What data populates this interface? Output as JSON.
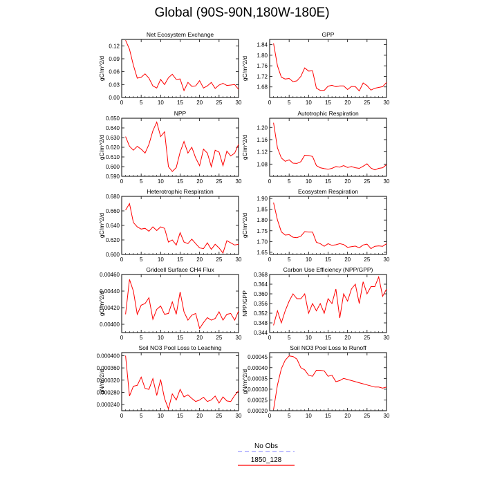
{
  "title": "Global (90S-90N,180W-180E)",
  "legend": {
    "items": [
      {
        "label": "No Obs",
        "color": "#9999ff",
        "dash": true
      },
      {
        "label": "1850_128",
        "color": "#ff0000",
        "dash": false
      }
    ]
  },
  "chart_data": [
    {
      "type": "line",
      "title": "Net Ecosystem Exchange",
      "ylabel": "gC/m^2/d",
      "xlim": [
        0,
        30
      ],
      "ylim": [
        0,
        0.135
      ],
      "yticks": [
        "0.00",
        "0.03",
        "0.06",
        "0.09",
        "0.12"
      ],
      "ytick_values": [
        0,
        0.03,
        0.06,
        0.09,
        0.12
      ],
      "xticks": [
        "0",
        "5",
        "10",
        "15",
        "20",
        "25",
        "30"
      ],
      "series": [
        {
          "x": [
            1,
            2,
            3,
            4,
            5,
            6,
            7,
            8,
            9,
            10,
            11,
            12,
            13,
            14,
            15,
            16,
            17,
            18,
            19,
            20,
            21,
            22,
            23,
            24,
            25,
            26,
            27,
            28,
            29,
            30
          ],
          "values": [
            0.133,
            0.112,
            0.075,
            0.045,
            0.047,
            0.055,
            0.045,
            0.027,
            0.022,
            0.042,
            0.03,
            0.046,
            0.054,
            0.042,
            0.043,
            0.016,
            0.035,
            0.026,
            0.027,
            0.039,
            0.022,
            0.027,
            0.035,
            0.021,
            0.029,
            0.033,
            0.028,
            0.029,
            0.03,
            0.019
          ]
        }
      ]
    },
    {
      "type": "line",
      "title": "GPP",
      "ylabel": "gC/m^2/d",
      "xlim": [
        0,
        30
      ],
      "ylim": [
        1.64,
        1.86
      ],
      "yticks": [
        "1.68",
        "1.72",
        "1.76",
        "1.80",
        "1.84"
      ],
      "ytick_values": [
        1.68,
        1.72,
        1.76,
        1.8,
        1.84
      ],
      "xticks": [
        "0",
        "5",
        "10",
        "15",
        "20",
        "25",
        "30"
      ],
      "series": [
        {
          "x": [
            1,
            2,
            3,
            4,
            5,
            6,
            7,
            8,
            9,
            10,
            11,
            12,
            13,
            14,
            15,
            16,
            17,
            18,
            19,
            20,
            21,
            22,
            23,
            24,
            25,
            26,
            27,
            28,
            29,
            30
          ],
          "values": [
            1.845,
            1.76,
            1.717,
            1.71,
            1.712,
            1.7,
            1.703,
            1.72,
            1.752,
            1.74,
            1.741,
            1.675,
            1.667,
            1.667,
            1.683,
            1.686,
            1.681,
            1.684,
            1.684,
            1.67,
            1.682,
            1.681,
            1.665,
            1.695,
            1.685,
            1.668,
            1.675,
            1.678,
            1.681,
            1.697
          ]
        }
      ]
    },
    {
      "type": "line",
      "title": "NPP",
      "ylabel": "gC/m^2/d",
      "xlim": [
        0,
        30
      ],
      "ylim": [
        0.59,
        0.65
      ],
      "yticks": [
        "0.590",
        "0.600",
        "0.610",
        "0.620",
        "0.630",
        "0.640",
        "0.650"
      ],
      "ytick_values": [
        0.59,
        0.6,
        0.61,
        0.62,
        0.63,
        0.64,
        0.65
      ],
      "xticks": [
        "0",
        "5",
        "10",
        "15",
        "20",
        "25",
        "30"
      ],
      "series": [
        {
          "x": [
            1,
            2,
            3,
            4,
            5,
            6,
            7,
            8,
            9,
            10,
            11,
            12,
            13,
            14,
            15,
            16,
            17,
            18,
            19,
            20,
            21,
            22,
            23,
            24,
            25,
            26,
            27,
            28,
            29,
            30
          ],
          "values": [
            0.631,
            0.621,
            0.617,
            0.621,
            0.618,
            0.614,
            0.623,
            0.637,
            0.646,
            0.631,
            0.636,
            0.6,
            0.595,
            0.599,
            0.615,
            0.626,
            0.614,
            0.62,
            0.609,
            0.601,
            0.618,
            0.614,
            0.6,
            0.617,
            0.615,
            0.601,
            0.616,
            0.611,
            0.614,
            0.623
          ]
        }
      ]
    },
    {
      "type": "line",
      "title": "Autotrophic Respiration",
      "ylabel": "gC/m^2/d",
      "xlim": [
        0,
        30
      ],
      "ylim": [
        1.04,
        1.23
      ],
      "yticks": [
        "1.08",
        "1.12",
        "1.16",
        "1.20"
      ],
      "ytick_values": [
        1.08,
        1.12,
        1.16,
        1.2
      ],
      "xticks": [
        "0",
        "5",
        "10",
        "15",
        "20",
        "25",
        "30"
      ],
      "series": [
        {
          "x": [
            1,
            2,
            3,
            4,
            5,
            6,
            7,
            8,
            9,
            10,
            11,
            12,
            13,
            14,
            15,
            16,
            17,
            18,
            19,
            20,
            21,
            22,
            23,
            24,
            25,
            26,
            27,
            28,
            29,
            30
          ],
          "values": [
            1.215,
            1.133,
            1.1,
            1.089,
            1.094,
            1.083,
            1.082,
            1.088,
            1.109,
            1.108,
            1.105,
            1.075,
            1.068,
            1.065,
            1.063,
            1.066,
            1.072,
            1.07,
            1.075,
            1.069,
            1.072,
            1.068,
            1.066,
            1.073,
            1.081,
            1.067,
            1.061,
            1.066,
            1.068,
            1.078
          ]
        }
      ]
    },
    {
      "type": "line",
      "title": "Heterotrophic Respiration",
      "ylabel": "gC/m^2/d",
      "xlim": [
        0,
        30
      ],
      "ylim": [
        0.6,
        0.68
      ],
      "yticks": [
        "0.600",
        "0.620",
        "0.640",
        "0.660",
        "0.680"
      ],
      "ytick_values": [
        0.6,
        0.62,
        0.64,
        0.66,
        0.68
      ],
      "xticks": [
        "0",
        "5",
        "10",
        "15",
        "20",
        "25",
        "30"
      ],
      "series": [
        {
          "x": [
            1,
            2,
            3,
            4,
            5,
            6,
            7,
            8,
            9,
            10,
            11,
            12,
            13,
            14,
            15,
            16,
            17,
            18,
            19,
            20,
            21,
            22,
            23,
            24,
            25,
            26,
            27,
            28,
            29,
            30
          ],
          "values": [
            0.661,
            0.67,
            0.644,
            0.638,
            0.635,
            0.636,
            0.632,
            0.638,
            0.633,
            0.638,
            0.636,
            0.617,
            0.62,
            0.613,
            0.63,
            0.617,
            0.615,
            0.621,
            0.615,
            0.609,
            0.608,
            0.616,
            0.607,
            0.614,
            0.609,
            0.602,
            0.619,
            0.616,
            0.613,
            0.614
          ]
        }
      ]
    },
    {
      "type": "line",
      "title": "Ecosystem Respiration",
      "ylabel": "gC/m^2/d",
      "xlim": [
        0,
        30
      ],
      "ylim": [
        1.64,
        1.91
      ],
      "yticks": [
        "1.65",
        "1.70",
        "1.75",
        "1.80",
        "1.85",
        "1.90"
      ],
      "ytick_values": [
        1.65,
        1.7,
        1.75,
        1.8,
        1.85,
        1.9
      ],
      "xticks": [
        "0",
        "5",
        "10",
        "15",
        "20",
        "25",
        "30"
      ],
      "series": [
        {
          "x": [
            1,
            2,
            3,
            4,
            5,
            6,
            7,
            8,
            9,
            10,
            11,
            12,
            13,
            14,
            15,
            16,
            17,
            18,
            19,
            20,
            21,
            22,
            23,
            24,
            25,
            26,
            27,
            28,
            29,
            30
          ],
          "values": [
            1.881,
            1.8,
            1.745,
            1.73,
            1.732,
            1.72,
            1.718,
            1.725,
            1.746,
            1.744,
            1.744,
            1.697,
            1.69,
            1.678,
            1.69,
            1.682,
            1.685,
            1.69,
            1.686,
            1.673,
            1.676,
            1.679,
            1.671,
            1.684,
            1.688,
            1.667,
            1.678,
            1.68,
            1.678,
            1.69
          ]
        }
      ]
    },
    {
      "type": "line",
      "title": "Gridcell Surface CH4 Flux",
      "ylabel": "gC/m^2/d",
      "xlim": [
        0,
        30
      ],
      "ylim": [
        0.0039,
        0.0046
      ],
      "yticks": [
        "0.00400",
        "0.00420",
        "0.00440",
        "0.00460"
      ],
      "ytick_values": [
        0.004,
        0.0042,
        0.0044,
        0.0046
      ],
      "xticks": [
        "0",
        "5",
        "10",
        "15",
        "20",
        "25",
        "30"
      ],
      "series": [
        {
          "x": [
            1,
            2,
            3,
            4,
            5,
            6,
            7,
            8,
            9,
            10,
            11,
            12,
            13,
            14,
            15,
            16,
            17,
            18,
            19,
            20,
            21,
            22,
            23,
            24,
            25,
            26,
            27,
            28,
            29,
            30
          ],
          "values": [
            0.00412,
            0.00454,
            0.0044,
            0.00412,
            0.00423,
            0.00425,
            0.00432,
            0.00406,
            0.00418,
            0.00422,
            0.00412,
            0.00413,
            0.00427,
            0.00412,
            0.00439,
            0.00415,
            0.00405,
            0.00411,
            0.00413,
            0.00395,
            0.00402,
            0.00408,
            0.00405,
            0.00407,
            0.00415,
            0.00405,
            0.00412,
            0.00413,
            0.00405,
            0.00416
          ]
        }
      ]
    },
    {
      "type": "line",
      "title": "Carbon Use Efficiency (NPP/GPP)",
      "ylabel": "NPP/GPP",
      "xlim": [
        0,
        30
      ],
      "ylim": [
        0.344,
        0.368
      ],
      "yticks": [
        "0.344",
        "0.348",
        "0.352",
        "0.356",
        "0.360",
        "0.364",
        "0.368"
      ],
      "ytick_values": [
        0.344,
        0.348,
        0.352,
        0.356,
        0.36,
        0.364,
        0.368
      ],
      "xticks": [
        "0",
        "5",
        "10",
        "15",
        "20",
        "25",
        "30"
      ],
      "series": [
        {
          "x": [
            1,
            2,
            3,
            4,
            5,
            6,
            7,
            8,
            9,
            10,
            11,
            12,
            13,
            14,
            15,
            16,
            17,
            18,
            19,
            20,
            21,
            22,
            23,
            24,
            25,
            26,
            27,
            28,
            29,
            30
          ],
          "values": [
            0.347,
            0.353,
            0.348,
            0.353,
            0.357,
            0.36,
            0.358,
            0.358,
            0.36,
            0.352,
            0.356,
            0.353,
            0.356,
            0.352,
            0.358,
            0.356,
            0.362,
            0.35,
            0.36,
            0.357,
            0.362,
            0.364,
            0.356,
            0.365,
            0.36,
            0.363,
            0.363,
            0.367,
            0.359,
            0.362
          ]
        }
      ]
    },
    {
      "type": "line",
      "title": "Soil NO3 Pool Loss to Leaching",
      "ylabel": "gN/m^2/d",
      "xlim": [
        0,
        30
      ],
      "ylim": [
        0.00022,
        0.00041
      ],
      "yticks": [
        "0.000240",
        "0.000280",
        "0.000320",
        "0.000360",
        "0.000400"
      ],
      "ytick_values": [
        0.00024,
        0.00028,
        0.00032,
        0.00036,
        0.0004
      ],
      "xticks": [
        "0",
        "5",
        "10",
        "15",
        "20",
        "25",
        "30"
      ],
      "series": [
        {
          "x": [
            1,
            2,
            3,
            4,
            5,
            6,
            7,
            8,
            9,
            10,
            11,
            12,
            13,
            14,
            15,
            16,
            17,
            18,
            19,
            20,
            21,
            22,
            23,
            24,
            25,
            26,
            27,
            28,
            29,
            30
          ],
          "values": [
            0.0004,
            0.000268,
            0.0003,
            0.000303,
            0.00033,
            0.000293,
            0.00029,
            0.000325,
            0.00027,
            0.000322,
            0.00026,
            0.000226,
            0.000275,
            0.000255,
            0.00029,
            0.000265,
            0.000272,
            0.00026,
            0.00025,
            0.000255,
            0.000264,
            0.00025,
            0.000255,
            0.000268,
            0.000245,
            0.000265,
            0.000252,
            0.00025,
            0.00027,
            0.000285
          ]
        }
      ]
    },
    {
      "type": "line",
      "title": "Soil NO3 Pool Loss to Runoff",
      "ylabel": "gN/m^2/d",
      "xlim": [
        0,
        30
      ],
      "ylim": [
        0.0002,
        0.00047
      ],
      "yticks": [
        "0.00020",
        "0.00025",
        "0.00030",
        "0.00035",
        "0.00040",
        "0.00045"
      ],
      "ytick_values": [
        0.0002,
        0.00025,
        0.0003,
        0.00035,
        0.0004,
        0.00045
      ],
      "xticks": [
        "0",
        "5",
        "10",
        "15",
        "20",
        "25",
        "30"
      ],
      "series": [
        {
          "x": [
            1,
            2,
            3,
            4,
            5,
            6,
            7,
            8,
            9,
            10,
            11,
            12,
            13,
            14,
            15,
            16,
            17,
            18,
            19,
            20,
            21,
            22,
            23,
            24,
            25,
            26,
            27,
            28,
            29,
            30
          ],
          "values": [
            0.000205,
            0.00032,
            0.000395,
            0.000435,
            0.000455,
            0.000452,
            0.00044,
            0.0004,
            0.00039,
            0.000365,
            0.00036,
            0.000388,
            0.000388,
            0.000385,
            0.00036,
            0.000365,
            0.000335,
            0.00034,
            0.00035,
            0.000345,
            0.00034,
            0.000335,
            0.00033,
            0.000325,
            0.00032,
            0.000315,
            0.00031,
            0.00031,
            0.000305,
            0.00031
          ]
        }
      ]
    }
  ]
}
